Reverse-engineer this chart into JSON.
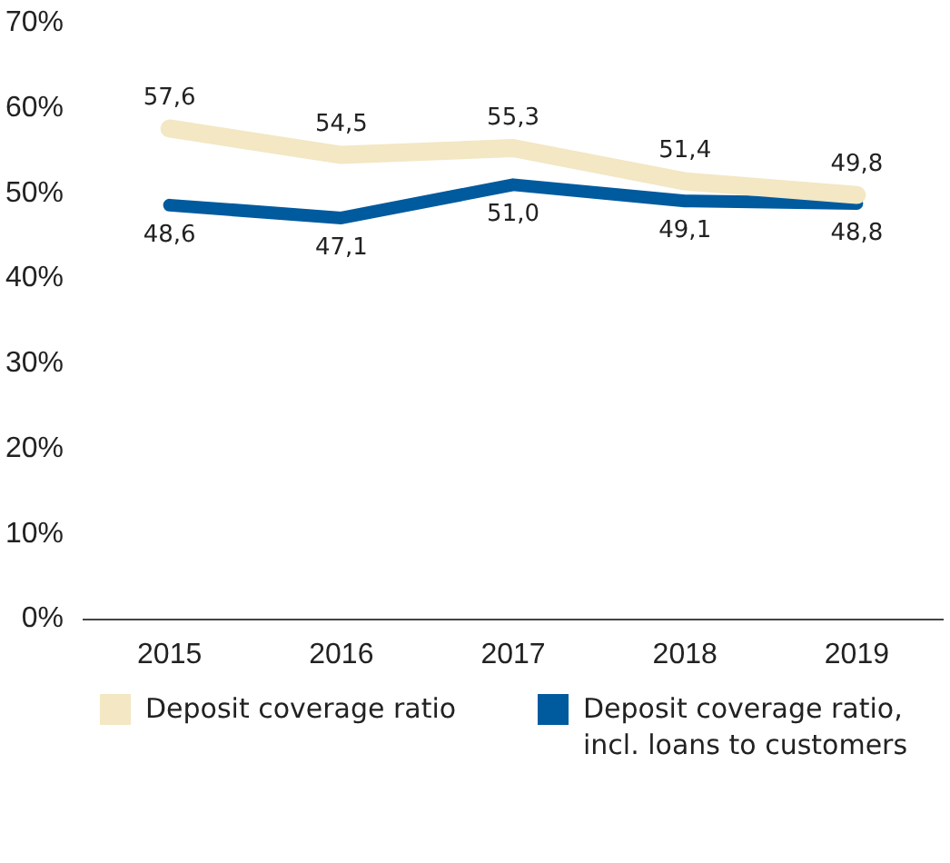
{
  "chart_data": {
    "type": "line",
    "categories": [
      "2015",
      "2016",
      "2017",
      "2018",
      "2019"
    ],
    "series": [
      {
        "name": "Deposit coverage ratio",
        "color": "#f3e7c4",
        "values": [
          57.6,
          54.5,
          55.3,
          51.4,
          49.8
        ],
        "value_labels": [
          "57,6",
          "54,5",
          "55,3",
          "51,4",
          "49,8"
        ]
      },
      {
        "name": "Deposit coverage ratio, incl. loans to customers",
        "color": "#005a9e",
        "values": [
          48.6,
          47.1,
          51.0,
          49.1,
          48.8
        ],
        "value_labels": [
          "48,6",
          "47,1",
          "51,0",
          "49,1",
          "48,8"
        ]
      }
    ],
    "ylim": [
      0,
      70
    ],
    "yticks": [
      {
        "value": 0,
        "label": "0%"
      },
      {
        "value": 10,
        "label": "10%"
      },
      {
        "value": 20,
        "label": "20%"
      },
      {
        "value": 30,
        "label": "30%"
      },
      {
        "value": 40,
        "label": "40%"
      },
      {
        "value": 50,
        "label": "50%"
      },
      {
        "value": 60,
        "label": "60%"
      },
      {
        "value": 70,
        "label": "70%"
      }
    ],
    "grid": false,
    "legend": "bottom",
    "marker": "none",
    "line_style": "solid"
  }
}
